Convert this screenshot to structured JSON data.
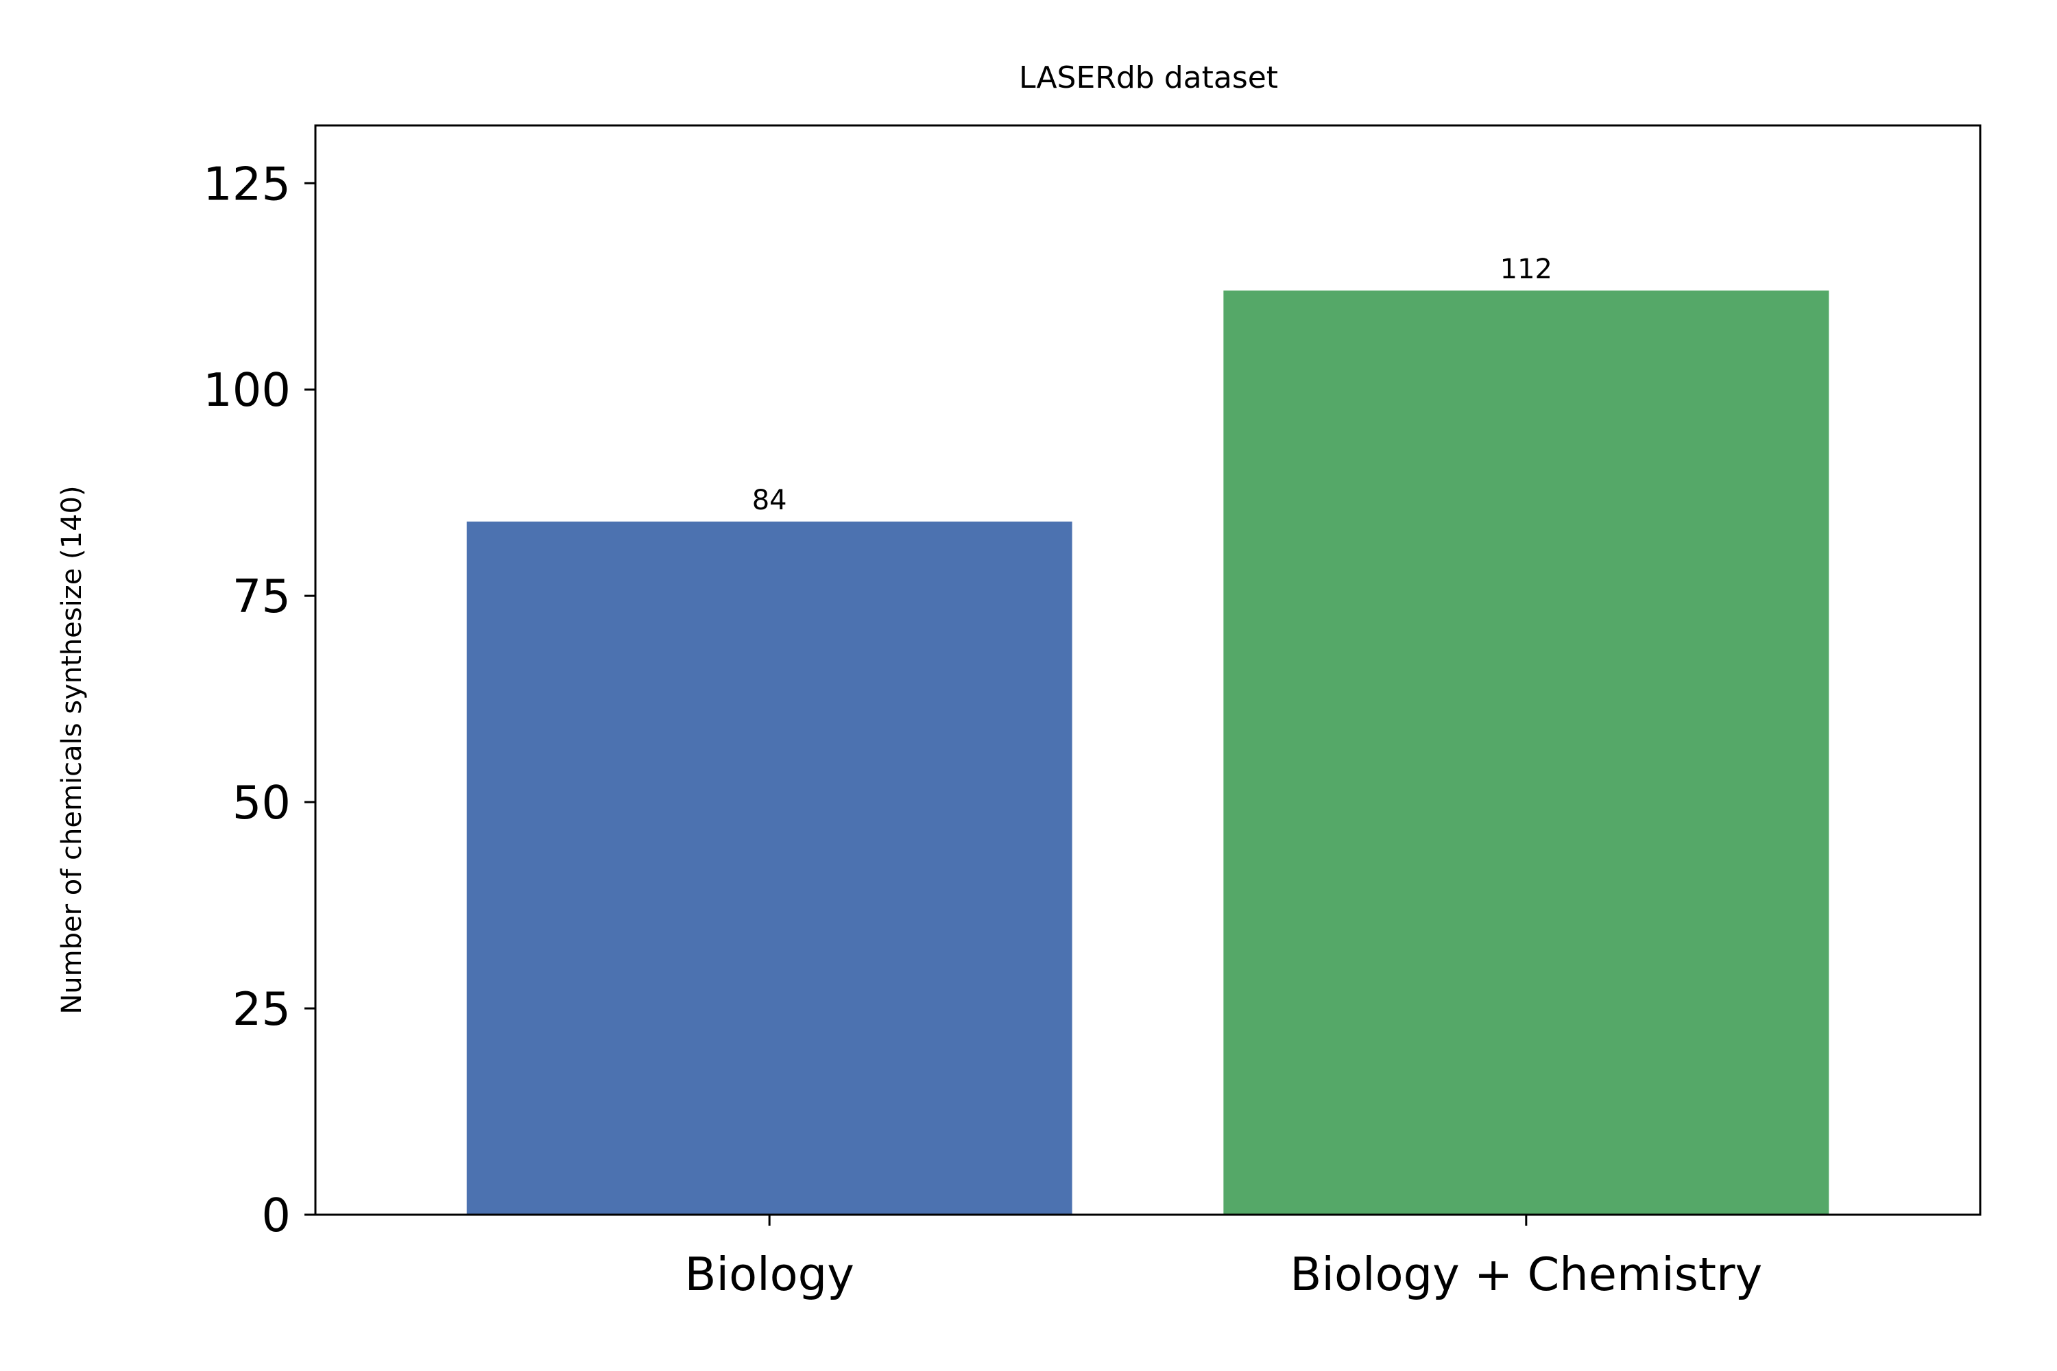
{
  "chart_data": {
    "type": "bar",
    "title": "LASERdb dataset",
    "xlabel": "",
    "ylabel": "Number of chemicals synthesize (140)",
    "categories": [
      "Biology",
      "Biology + Chemistry"
    ],
    "values": [
      84,
      112
    ],
    "bar_labels": [
      "84",
      "112"
    ],
    "colors": [
      "#4c72b0",
      "#55a868"
    ],
    "ylim": [
      0,
      132
    ],
    "yticks": [
      0,
      25,
      50,
      75,
      100,
      125
    ],
    "grid": false,
    "legend": "none"
  }
}
